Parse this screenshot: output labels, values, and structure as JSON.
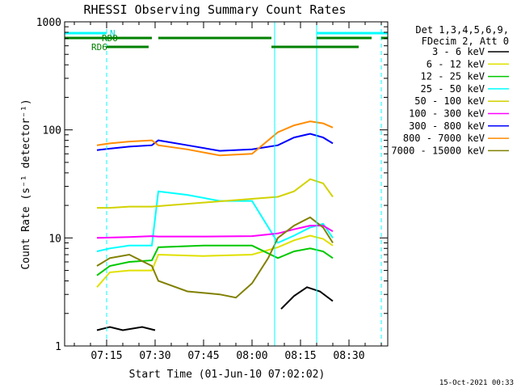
{
  "chart_data": {
    "type": "line",
    "title": "RHESSI Observing Summary Count Rates",
    "xlabel": "Start Time (01-Jun-10 07:02:02)",
    "ylabel": "Count Rate (s⁻¹ detector⁻¹)",
    "xlim": [
      "07:02",
      "08:42"
    ],
    "ylim": [
      1,
      1000
    ],
    "yscale": "log",
    "x_ticks": [
      "07:15",
      "07:30",
      "07:45",
      "08:00",
      "08:15",
      "08:30"
    ],
    "y_ticks": [
      "1",
      "10",
      "100",
      "1000"
    ],
    "legend_position": "right",
    "legend_header": [
      "Det 1,3,4,5,6,9,",
      "FDecim 2, Att 0"
    ],
    "timestamp": "15-Oct-2021 00:33",
    "annotations": {
      "N": "N",
      "RDO": "RDO",
      "RD6": "RD6"
    },
    "series": [
      {
        "name": "3 - 6 keV",
        "color": "#000000",
        "x": [
          "07:12",
          "07:16",
          "07:20",
          "07:26",
          "07:30",
          "07:31",
          "08:08",
          "08:09",
          "08:13",
          "08:17",
          "08:21",
          "08:25"
        ],
        "y": [
          1.4,
          1.5,
          1.4,
          1.5,
          1.4,
          null,
          null,
          2.2,
          2.9,
          3.5,
          3.2,
          2.6
        ]
      },
      {
        "name": "6 - 12 keV",
        "color": "#e0e000",
        "x": [
          "07:12",
          "07:16",
          "07:22",
          "07:29",
          "07:31",
          "07:45",
          "08:00",
          "08:08",
          "08:13",
          "08:18",
          "08:22",
          "08:25"
        ],
        "y": [
          3.5,
          4.8,
          5.0,
          5.0,
          7.0,
          6.8,
          7.0,
          8.2,
          9.5,
          10.5,
          9.8,
          8.5
        ]
      },
      {
        "name": "12 - 25 keV",
        "color": "#00c800",
        "x": [
          "07:12",
          "07:16",
          "07:22",
          "07:29",
          "07:31",
          "07:45",
          "08:00",
          "08:08",
          "08:13",
          "08:18",
          "08:22",
          "08:25"
        ],
        "y": [
          4.5,
          5.5,
          6.0,
          6.2,
          8.2,
          8.5,
          8.5,
          6.5,
          7.5,
          8.0,
          7.5,
          6.5
        ]
      },
      {
        "name": "25 - 50 keV",
        "color": "#00ffff",
        "x": [
          "07:12",
          "07:16",
          "07:22",
          "07:29",
          "07:31",
          "07:40",
          "07:50",
          "08:00",
          "08:08",
          "08:13",
          "08:18",
          "08:22",
          "08:25"
        ],
        "y": [
          7.5,
          8.0,
          8.5,
          8.5,
          27,
          25,
          22,
          22,
          9.0,
          10.5,
          12.5,
          13.5,
          10.0
        ]
      },
      {
        "name": "50 - 100 keV",
        "color": "#d2d200",
        "x": [
          "07:12",
          "07:16",
          "07:22",
          "07:29",
          "08:08",
          "08:13",
          "08:18",
          "08:22",
          "08:25"
        ],
        "y": [
          19,
          19,
          19.5,
          19.5,
          24,
          27,
          35,
          32,
          24
        ]
      },
      {
        "name": "100 - 300 keV",
        "color": "#ff00ff",
        "x": [
          "07:12",
          "07:22",
          "07:29",
          "07:31",
          "07:45",
          "08:00",
          "08:08",
          "08:13",
          "08:18",
          "08:22",
          "08:25"
        ],
        "y": [
          10,
          10.2,
          10.4,
          10.3,
          10.3,
          10.4,
          11,
          12,
          13,
          13,
          11.5
        ]
      },
      {
        "name": "300 - 800 keV",
        "color": "#0000ff",
        "x": [
          "07:12",
          "07:16",
          "07:22",
          "07:29",
          "07:31",
          "07:40",
          "07:50",
          "08:00",
          "08:08",
          "08:13",
          "08:18",
          "08:22",
          "08:25"
        ],
        "y": [
          65,
          67,
          70,
          72,
          80,
          72,
          64,
          66,
          72,
          85,
          92,
          85,
          75
        ]
      },
      {
        "name": "800 - 7000 keV",
        "color": "#ff8c00",
        "x": [
          "07:12",
          "07:16",
          "07:22",
          "07:29",
          "07:31",
          "07:40",
          "07:50",
          "08:00",
          "08:08",
          "08:13",
          "08:18",
          "08:22",
          "08:25"
        ],
        "y": [
          72,
          75,
          78,
          80,
          72,
          66,
          58,
          60,
          95,
          110,
          120,
          115,
          105
        ]
      },
      {
        "name": "7000 - 15000 keV",
        "color": "#808000",
        "x": [
          "07:12",
          "07:16",
          "07:22",
          "07:29",
          "07:31",
          "07:40",
          "07:50",
          "07:55",
          "08:00",
          "08:05",
          "08:08",
          "08:13",
          "08:18",
          "08:22",
          "08:25"
        ],
        "y": [
          5.5,
          6.5,
          7.0,
          5.5,
          4.0,
          3.2,
          3.0,
          2.8,
          3.8,
          6.5,
          10.0,
          13.0,
          15.5,
          12.5,
          9.0
        ]
      }
    ],
    "state_bars": [
      {
        "color": "#00ffff",
        "label": "N",
        "spans": [
          [
            "07:02",
            "07:15"
          ],
          [
            "08:20",
            "08:42"
          ]
        ]
      },
      {
        "color": "#008000",
        "label": "RDO",
        "spans": [
          [
            "07:02",
            "07:29"
          ],
          [
            "07:31",
            "08:06"
          ],
          [
            "08:20",
            "08:37"
          ],
          [
            "08:40",
            "08:42"
          ]
        ]
      },
      {
        "color": "#008000",
        "label": "RD6",
        "spans": [
          [
            "07:15",
            "07:28"
          ],
          [
            "08:06",
            "08:33"
          ]
        ]
      }
    ],
    "vlines": [
      {
        "t": "07:02",
        "color": "#00ffff",
        "style": "solid"
      },
      {
        "t": "07:15",
        "color": "#00ffff",
        "style": "dashed"
      },
      {
        "t": "08:07",
        "color": "#00ffff",
        "style": "solid"
      },
      {
        "t": "08:20",
        "color": "#00ffff",
        "style": "solid"
      },
      {
        "t": "08:40",
        "color": "#00ffff",
        "style": "dashed"
      }
    ]
  }
}
